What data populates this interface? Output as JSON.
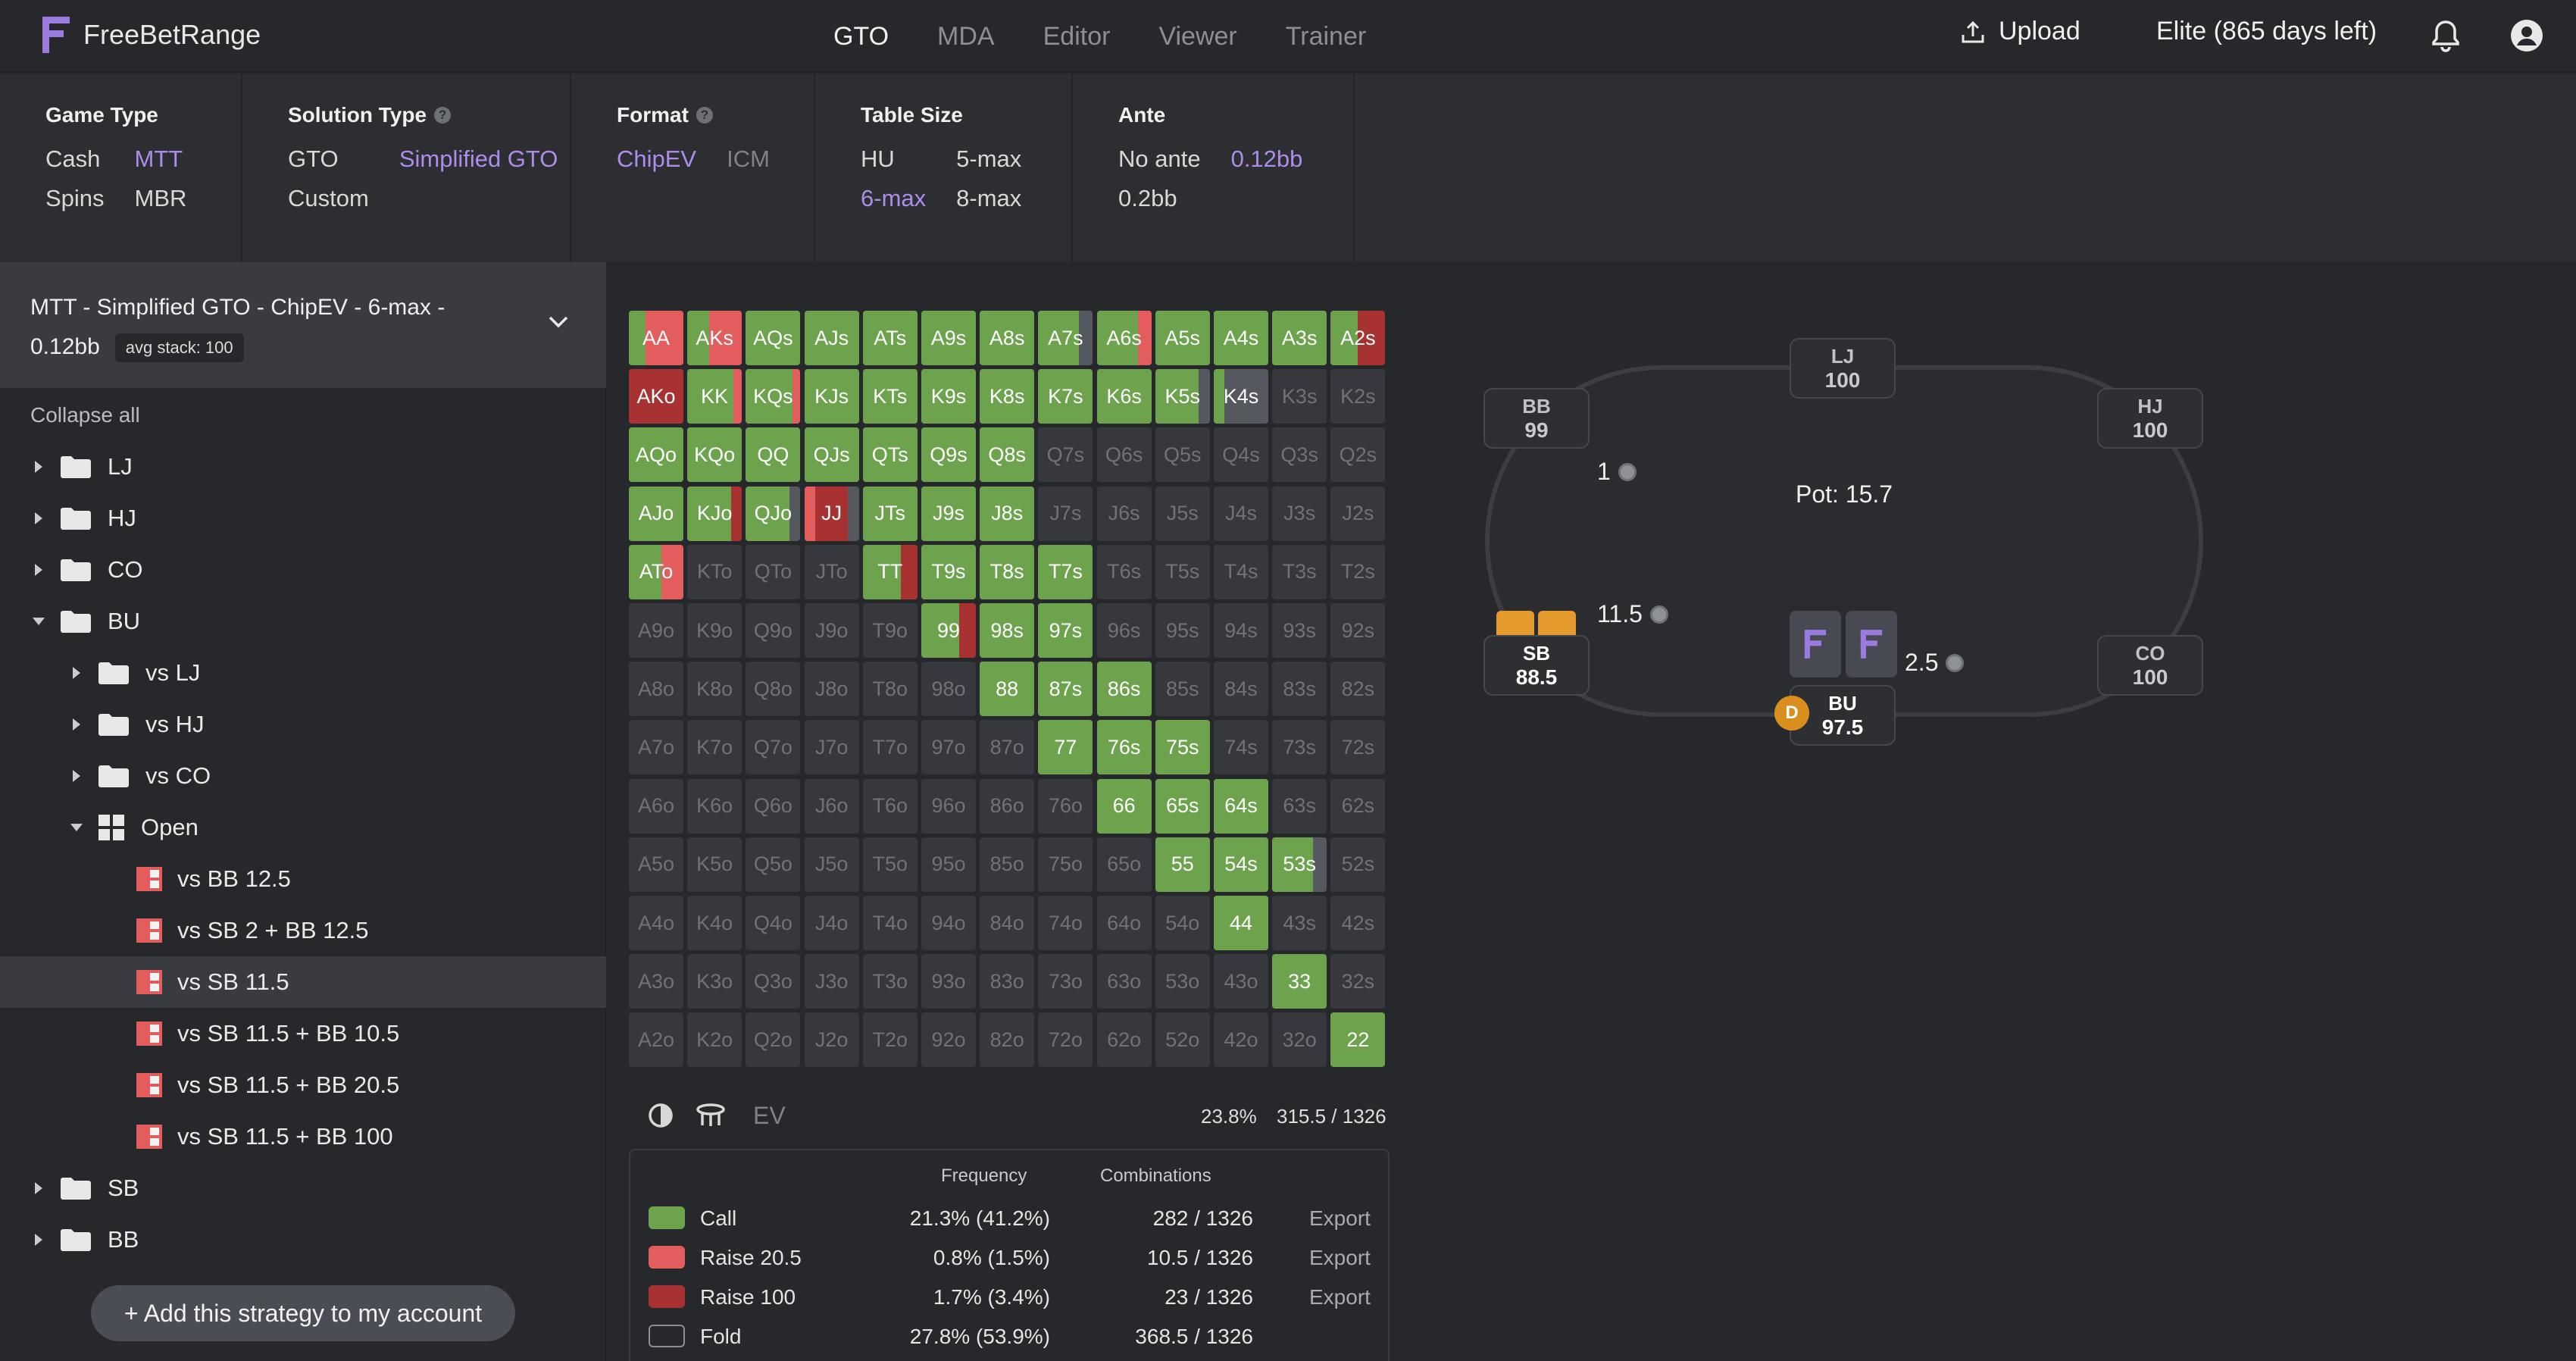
{
  "app": {
    "name": "FreeBetRange"
  },
  "nav": [
    {
      "label": "GTO",
      "active": true
    },
    {
      "label": "MDA",
      "active": false
    },
    {
      "label": "Editor",
      "active": false
    },
    {
      "label": "Viewer",
      "active": false
    },
    {
      "label": "Trainer",
      "active": false
    }
  ],
  "header": {
    "upload": "Upload",
    "plan": "Elite (865 days left)"
  },
  "filters": {
    "game_type": {
      "title": "Game Type",
      "options": [
        "Cash",
        "MTT",
        "Spins",
        "MBR"
      ],
      "selected": "MTT"
    },
    "solution_type": {
      "title": "Solution Type",
      "options": [
        "GTO",
        "Simplified GTO",
        "Custom"
      ],
      "selected": "Simplified GTO"
    },
    "format": {
      "title": "Format",
      "options": [
        "ChipEV",
        "ICM"
      ],
      "selected": "ChipEV"
    },
    "table_size": {
      "title": "Table Size",
      "options": [
        "HU",
        "5-max",
        "6-max",
        "8-max"
      ],
      "selected": "6-max"
    },
    "ante": {
      "title": "Ante",
      "options": [
        "No ante",
        "0.12bb",
        "0.2bb"
      ],
      "selected": "0.12bb"
    }
  },
  "sidebar": {
    "summary": "MTT - Simplified GTO - ChipEV - 6-max - 0.12bb",
    "badge": "avg stack: 100",
    "collapse_all": "Collapse all",
    "tree": [
      {
        "label": "LJ",
        "depth": 0,
        "type": "folder",
        "expanded": false
      },
      {
        "label": "HJ",
        "depth": 0,
        "type": "folder",
        "expanded": false
      },
      {
        "label": "CO",
        "depth": 0,
        "type": "folder",
        "expanded": false
      },
      {
        "label": "BU",
        "depth": 0,
        "type": "folder",
        "expanded": true
      },
      {
        "label": "vs LJ",
        "depth": 1,
        "type": "folder",
        "expanded": false
      },
      {
        "label": "vs HJ",
        "depth": 1,
        "type": "folder",
        "expanded": false
      },
      {
        "label": "vs CO",
        "depth": 1,
        "type": "folder",
        "expanded": false
      },
      {
        "label": "Open",
        "depth": 1,
        "type": "grid",
        "expanded": true
      },
      {
        "label": "vs BB 12.5",
        "depth": 2,
        "type": "strategy"
      },
      {
        "label": "vs SB 2 + BB 12.5",
        "depth": 2,
        "type": "strategy"
      },
      {
        "label": "vs SB 11.5",
        "depth": 2,
        "type": "strategy",
        "active": true
      },
      {
        "label": "vs SB 11.5 + BB 10.5",
        "depth": 2,
        "type": "strategy"
      },
      {
        "label": "vs SB 11.5 + BB 20.5",
        "depth": 2,
        "type": "strategy"
      },
      {
        "label": "vs SB 11.5 + BB 100",
        "depth": 2,
        "type": "strategy"
      },
      {
        "label": "SB",
        "depth": 0,
        "type": "folder",
        "expanded": false
      },
      {
        "label": "BB",
        "depth": 0,
        "type": "folder",
        "expanded": false
      }
    ],
    "add_button": "+ Add this strategy to my account"
  },
  "colors": {
    "call": "#6da34d",
    "raise_small": "#e35d5d",
    "raise_big": "#a83232",
    "fold": "#36383d"
  },
  "range_grid": {
    "hands": [
      [
        "AA",
        "AKs",
        "AQs",
        "AJs",
        "ATs",
        "A9s",
        "A8s",
        "A7s",
        "A6s",
        "A5s",
        "A4s",
        "A3s",
        "A2s"
      ],
      [
        "AKo",
        "KK",
        "KQs",
        "KJs",
        "KTs",
        "K9s",
        "K8s",
        "K7s",
        "K6s",
        "K5s",
        "K4s",
        "K3s",
        "K2s"
      ],
      [
        "AQo",
        "KQo",
        "QQ",
        "QJs",
        "QTs",
        "Q9s",
        "Q8s",
        "Q7s",
        "Q6s",
        "Q5s",
        "Q4s",
        "Q3s",
        "Q2s"
      ],
      [
        "AJo",
        "KJo",
        "QJo",
        "JJ",
        "JTs",
        "J9s",
        "J8s",
        "J7s",
        "J6s",
        "J5s",
        "J4s",
        "J3s",
        "J2s"
      ],
      [
        "ATo",
        "KTo",
        "QTo",
        "JTo",
        "TT",
        "T9s",
        "T8s",
        "T7s",
        "T6s",
        "T5s",
        "T4s",
        "T3s",
        "T2s"
      ],
      [
        "A9o",
        "K9o",
        "Q9o",
        "J9o",
        "T9o",
        "99",
        "98s",
        "97s",
        "96s",
        "95s",
        "94s",
        "93s",
        "92s"
      ],
      [
        "A8o",
        "K8o",
        "Q8o",
        "J8o",
        "T8o",
        "98o",
        "88",
        "87s",
        "86s",
        "85s",
        "84s",
        "83s",
        "82s"
      ],
      [
        "A7o",
        "K7o",
        "Q7o",
        "J7o",
        "T7o",
        "97o",
        "87o",
        "77",
        "76s",
        "75s",
        "74s",
        "73s",
        "72s"
      ],
      [
        "A6o",
        "K6o",
        "Q6o",
        "J6o",
        "T6o",
        "96o",
        "86o",
        "76o",
        "66",
        "65s",
        "64s",
        "63s",
        "62s"
      ],
      [
        "A5o",
        "K5o",
        "Q5o",
        "J5o",
        "T5o",
        "95o",
        "85o",
        "75o",
        "65o",
        "55",
        "54s",
        "53s",
        "52s"
      ],
      [
        "A4o",
        "K4o",
        "Q4o",
        "J4o",
        "T4o",
        "94o",
        "84o",
        "74o",
        "64o",
        "54o",
        "44",
        "43s",
        "42s"
      ],
      [
        "A3o",
        "K3o",
        "Q3o",
        "J3o",
        "T3o",
        "93o",
        "83o",
        "73o",
        "63o",
        "53o",
        "43o",
        "33",
        "32s"
      ],
      [
        "A2o",
        "K2o",
        "Q2o",
        "J2o",
        "T2o",
        "92o",
        "82o",
        "72o",
        "62o",
        "52o",
        "42o",
        "32o",
        "22"
      ]
    ],
    "mix": {
      "AA": [
        0.3,
        0.7,
        0,
        0
      ],
      "AKs": [
        0.4,
        0.6,
        0,
        0
      ],
      "KJo": [
        0.8,
        0,
        0.2,
        0
      ],
      "QJo": [
        0.8,
        0,
        0,
        0.2
      ],
      "JJ": [
        0,
        0.2,
        0.6,
        0.2
      ],
      "ATo": [
        0.6,
        0.4,
        0,
        0
      ],
      "TT": [
        0.7,
        0,
        0.3,
        0
      ],
      "99": [
        0.7,
        0,
        0.3,
        0
      ],
      "A6s": [
        0.75,
        0.25,
        0,
        0
      ],
      "A2s": [
        0.5,
        0,
        0.5,
        0
      ],
      "AKo": [
        0,
        0,
        1,
        0
      ],
      "A7s": [
        0.75,
        0,
        0,
        0.25
      ],
      "K5s": [
        0.8,
        0,
        0,
        0.2
      ],
      "K4s": [
        0.2,
        0,
        0,
        0.8
      ],
      "53s": [
        0.75,
        0,
        0,
        0.25
      ],
      "KQs": [
        0.85,
        0.15,
        0,
        0
      ],
      "KK": [
        0.85,
        0.15,
        0,
        0
      ]
    },
    "calls": [
      "AQs",
      "AJs",
      "ATs",
      "A9s",
      "A8s",
      "A5s",
      "A4s",
      "A3s",
      "KJs",
      "KTs",
      "K9s",
      "K8s",
      "K7s",
      "K6s",
      "AQo",
      "KQo",
      "QQ",
      "QJs",
      "QTs",
      "Q9s",
      "Q8s",
      "AJo",
      "JTs",
      "J9s",
      "J8s",
      "T9s",
      "T8s",
      "T7s",
      "98s",
      "97s",
      "88",
      "87s",
      "86s",
      "77",
      "76s",
      "75s",
      "66",
      "65s",
      "64s",
      "55",
      "54s",
      "44",
      "33",
      "22"
    ]
  },
  "stats": {
    "ev": "EV",
    "percent": "23.8%",
    "combos": "315.5 / 1326"
  },
  "actions_table": {
    "headers": {
      "frequency": "Frequency",
      "combinations": "Combinations"
    },
    "rows": [
      {
        "name": "Call",
        "freq": "21.3% (41.2%)",
        "combos": "282 / 1326",
        "export": "Export",
        "color": "#6da34d"
      },
      {
        "name": "Raise 20.5",
        "freq": "0.8% (1.5%)",
        "combos": "10.5 / 1326",
        "export": "Export",
        "color": "#e35d5d"
      },
      {
        "name": "Raise 100",
        "freq": "1.7% (3.4%)",
        "combos": "23 / 1326",
        "export": "Export",
        "color": "#a83232"
      },
      {
        "name": "Fold",
        "freq": "27.8% (53.9%)",
        "combos": "368.5 / 1326",
        "export": "",
        "color": ""
      }
    ]
  },
  "poker_table": {
    "pot": "Pot: 15.7",
    "seats": [
      {
        "pos": "LJ",
        "stack": "100"
      },
      {
        "pos": "HJ",
        "stack": "100"
      },
      {
        "pos": "CO",
        "stack": "100"
      },
      {
        "pos": "BU",
        "stack": "97.5"
      },
      {
        "pos": "SB",
        "stack": "88.5"
      },
      {
        "pos": "BB",
        "stack": "99"
      }
    ],
    "bets": {
      "bb": "1",
      "sb": "11.5",
      "bu": "2.5"
    },
    "dealer": "D"
  }
}
